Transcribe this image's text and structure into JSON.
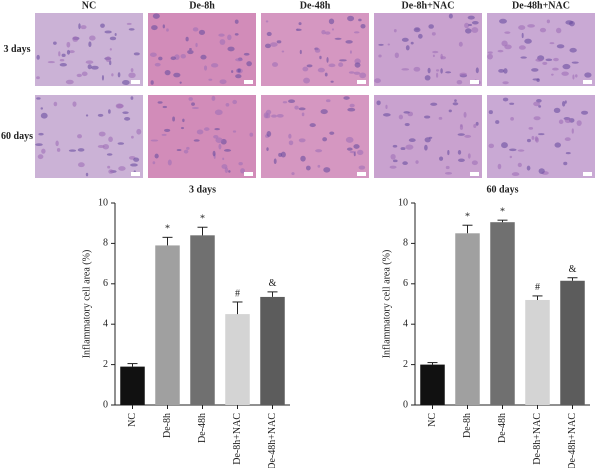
{
  "histology": {
    "columns": [
      "NC",
      "De-8h",
      "De-48h",
      "De-8h+NAC",
      "De-48h+NAC"
    ],
    "rows": [
      "3 days",
      "60 days"
    ]
  },
  "chart_data": [
    {
      "type": "bar",
      "title": "3 days",
      "ylabel": "Inflammatory cell area (%)",
      "categories": [
        "NC",
        "De-8h",
        "De-48h",
        "De-8h+NAC",
        "De-48h+NAC"
      ],
      "values": [
        1.9,
        7.9,
        8.4,
        4.5,
        5.35
      ],
      "errors": [
        0.15,
        0.4,
        0.4,
        0.6,
        0.25
      ],
      "annotations": [
        null,
        "*",
        "*",
        "#",
        "&"
      ],
      "colors": [
        "#111111",
        "#a0a0a0",
        "#707070",
        "#d4d4d4",
        "#5c5c5c"
      ],
      "ylim": [
        0,
        10
      ],
      "yticks": [
        0,
        2,
        4,
        6,
        8,
        10
      ]
    },
    {
      "type": "bar",
      "title": "60 days",
      "ylabel": "Inflammatory cell area (%)",
      "categories": [
        "NC",
        "De-8h",
        "De-48h",
        "De-8h+NAC",
        "De-48h+NAC"
      ],
      "values": [
        2.0,
        8.5,
        9.05,
        5.2,
        6.15
      ],
      "errors": [
        0.1,
        0.4,
        0.1,
        0.2,
        0.15
      ],
      "annotations": [
        null,
        "*",
        "*",
        "#",
        "&"
      ],
      "colors": [
        "#111111",
        "#a0a0a0",
        "#707070",
        "#d4d4d4",
        "#5c5c5c"
      ],
      "ylim": [
        0,
        10
      ],
      "yticks": [
        0,
        2,
        4,
        6,
        8,
        10
      ]
    }
  ]
}
